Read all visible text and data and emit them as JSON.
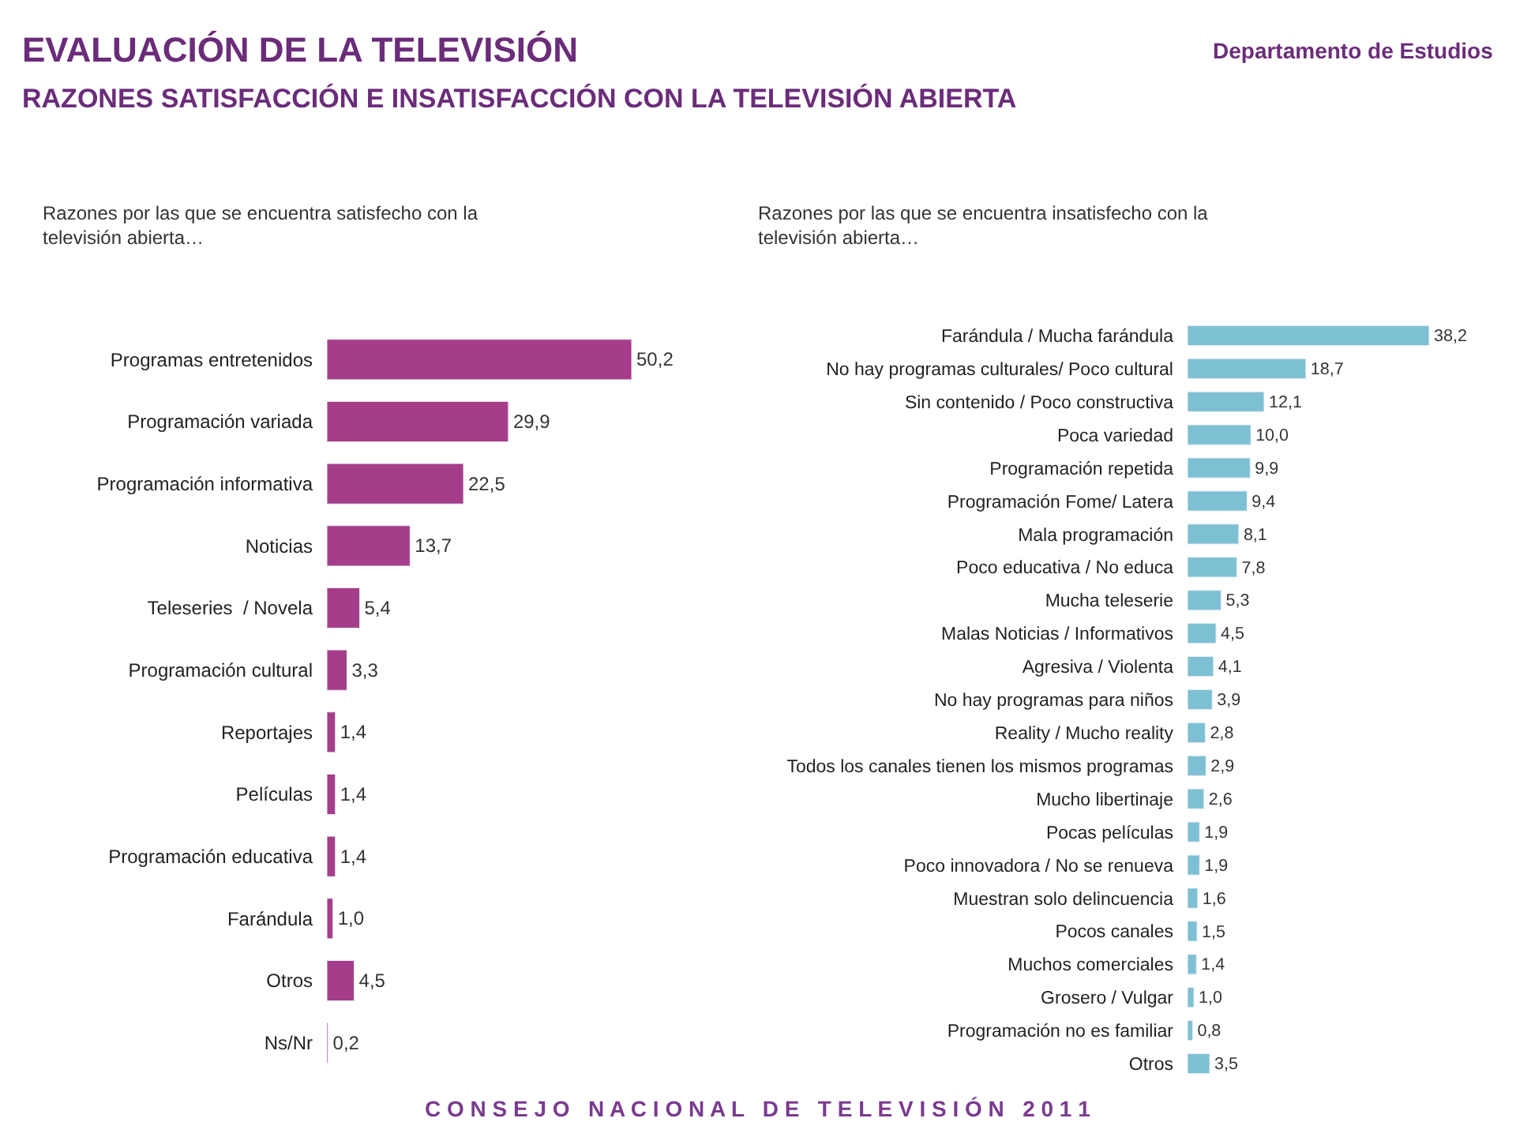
{
  "chart_data": [
    {
      "type": "bar",
      "orientation": "horizontal",
      "title": "Razones por las que se encuentra satisfecho con la televisión abierta…",
      "color": "#a63d8a",
      "value_labels": [
        "50,2",
        "29,9",
        "22,5",
        "13,7",
        "5,4",
        "3,3",
        "1,4",
        "1,4",
        "1,4",
        "1,0",
        "4,5",
        "0,2"
      ],
      "categories": [
        "Programas entretenidos",
        "Programación variada",
        "Programación informativa",
        "Noticias",
        "Teleseries  / Novela",
        "Programación cultural",
        "Reportajes",
        "Películas",
        "Programación educativa",
        "Farándula",
        "Otros",
        "Ns/Nr"
      ],
      "values": [
        50.2,
        29.9,
        22.5,
        13.7,
        5.4,
        3.3,
        1.4,
        1.4,
        1.4,
        1.0,
        4.5,
        0.2
      ],
      "annotations": [
        "EVALUACIÓN DE LA TELEVISIÓN",
        "RAZONES SATISFACCIÓN E INSATISFACCIÓN CON LA TELEVISIÓN ABIERTA",
        "Departamento de Estudios",
        "C O N S E J O   N A C I O N A L   D E   T E L E V I S I Ó N   2 0 1 1"
      ]
    },
    {
      "type": "bar",
      "orientation": "horizontal",
      "title": "Razones por las que se encuentra insatisfecho con la televisión abierta…",
      "color": "#7ec0d3",
      "value_labels": [
        "38,2",
        "18,7",
        "12,1",
        "10,0",
        "9,9",
        "9,4",
        "8,1",
        "7,8",
        "5,3",
        "4,5",
        "4,1",
        "3,9",
        "2,8",
        "2,9",
        "2,6",
        "1,9",
        "1,9",
        "1,6",
        "1,5",
        "1,4",
        "1,0",
        "0,8",
        "3,5"
      ],
      "categories": [
        "Farándula / Mucha farándula",
        "No hay programas culturales/ Poco cultural",
        "Sin contenido / Poco constructiva",
        "Poca variedad",
        "Programación repetida",
        "Programación Fome/ Latera",
        "Mala programación",
        "Poco educativa / No educa",
        "Mucha teleserie",
        "Malas Noticias / Informativos",
        "Agresiva / Violenta",
        "No hay programas para niños",
        "Reality / Mucho reality",
        "Todos los canales tienen los mismos programas",
        "Mucho libertinaje",
        "Pocas películas",
        "Poco innovadora / No se renueva",
        "Muestran solo delincuencia",
        "Pocos canales",
        "Muchos comerciales",
        "Grosero / Vulgar",
        "Programación no es familiar",
        "Otros"
      ],
      "values": [
        38.2,
        18.7,
        12.1,
        10.0,
        9.9,
        9.4,
        8.1,
        7.8,
        5.3,
        4.5,
        4.1,
        3.9,
        2.8,
        2.9,
        2.6,
        1.9,
        1.9,
        1.6,
        1.5,
        1.4,
        1.0,
        0.8,
        3.5
      ]
    }
  ]
}
